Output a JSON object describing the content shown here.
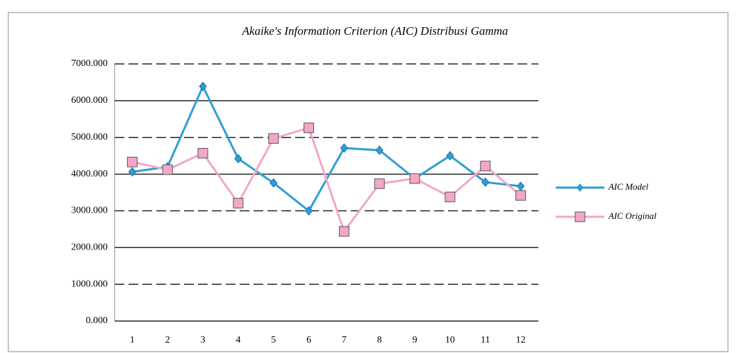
{
  "chart_data": {
    "type": "line",
    "title": "Akaike's Information Criterion (AIC) Distribusi Gamma",
    "categories": [
      "1",
      "2",
      "3",
      "4",
      "5",
      "6",
      "7",
      "8",
      "9",
      "10",
      "11",
      "12"
    ],
    "series": [
      {
        "name": "AIC Model",
        "color": "#2e9ed6",
        "marker": "diamond",
        "values": [
          4060,
          4200,
          6390,
          4420,
          3760,
          3000,
          4710,
          4650,
          3880,
          4500,
          3780,
          3670
        ]
      },
      {
        "name": "AIC Original",
        "color": "#f3a6c8",
        "marker": "square",
        "values": [
          4330,
          4120,
          4570,
          3210,
          4970,
          5260,
          2440,
          3740,
          3880,
          3380,
          4220,
          3420
        ]
      }
    ],
    "ylim": [
      0,
      7000
    ],
    "yticks": [
      {
        "value": 0,
        "label": "0.000"
      },
      {
        "value": 1000,
        "label": "1000.000"
      },
      {
        "value": 2000,
        "label": "2000.000"
      },
      {
        "value": 3000,
        "label": "3000.000"
      },
      {
        "value": 4000,
        "label": "4000.000"
      },
      {
        "value": 5000,
        "label": "5000.000"
      },
      {
        "value": 6000,
        "label": "6000.000"
      },
      {
        "value": 7000,
        "label": "7000.000"
      }
    ],
    "grid": true,
    "legend": "right"
  }
}
